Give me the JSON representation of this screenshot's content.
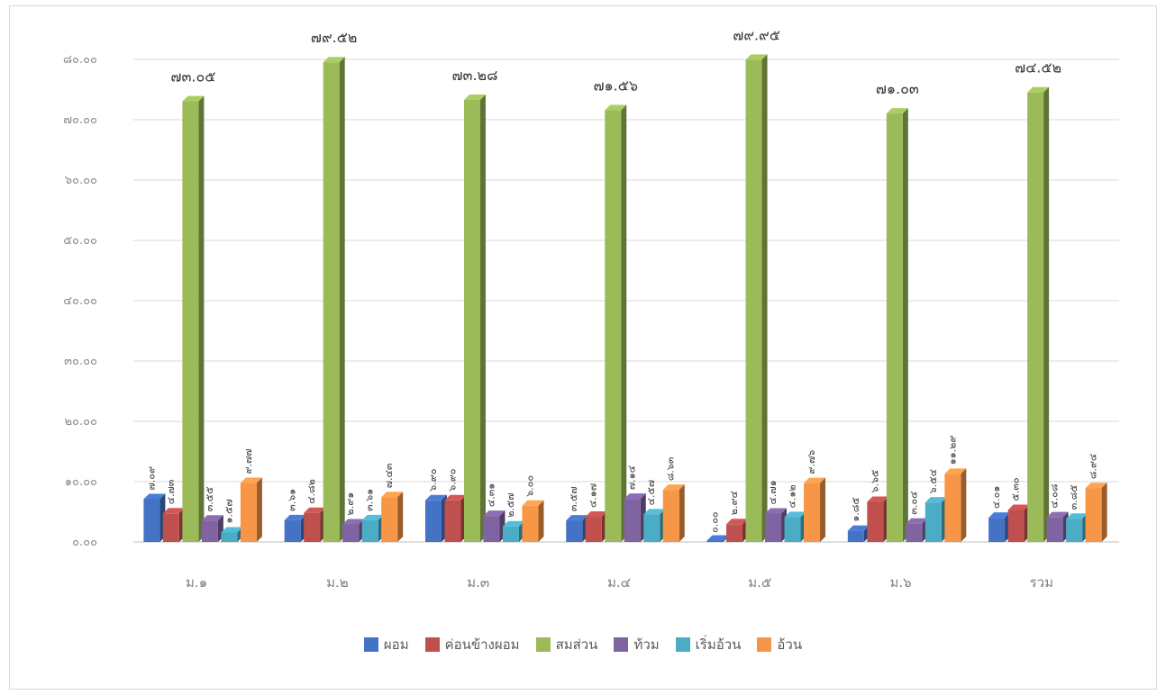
{
  "chart_data": {
    "type": "bar",
    "categories": [
      "ม.๑",
      "ม.๒",
      "ม.๓",
      "ม.๔",
      "ม.๕",
      "ม.๖",
      "รวม"
    ],
    "ylim": [
      0,
      80
    ],
    "yticks": [
      0,
      10,
      20,
      30,
      40,
      50,
      60,
      70,
      80
    ],
    "ytick_labels": [
      "๐.๐๐",
      "๑๐.๐๐",
      "๒๐.๐๐",
      "๓๐.๐๐",
      "๔๐.๐๐",
      "๕๐.๐๐",
      "๖๐.๐๐",
      "๗๐.๐๐",
      "๘๐.๐๐"
    ],
    "grid": true,
    "legend_position": "bottom",
    "series": [
      {
        "name": "ผอม",
        "color": "#4472C4",
        "values": [
          7.09,
          3.61,
          6.9,
          3.57,
          0.0,
          1.85,
          4.01
        ],
        "labels": [
          "๗.๐๙",
          "๓.๖๑",
          "๖.๙๐",
          "๓.๕๗",
          "๐.๐๐",
          "๑.๘๕",
          "๔.๐๑"
        ]
      },
      {
        "name": "ค่อนข้างผอม",
        "color": "#C0504D",
        "values": [
          4.73,
          4.82,
          6.9,
          4.17,
          2.94,
          6.65,
          5.3
        ],
        "labels": [
          "๔.๗๓",
          "๔.๘๒",
          "๖.๙๐",
          "๔.๑๗",
          "๒.๙๔",
          "๖.๖๕",
          "๕.๓๐"
        ]
      },
      {
        "name": "สมส่วน",
        "color": "#9BBB59",
        "values": [
          73.05,
          79.52,
          73.28,
          71.56,
          79.95,
          71.03,
          74.52
        ],
        "labels": [
          "๗๓.๐๕",
          "๗๙.๕๒",
          "๗๓.๒๘",
          "๗๑.๕๖",
          "๗๙.๙๕",
          "๗๑.๐๓",
          "๗๔.๕๒"
        ]
      },
      {
        "name": "ท้วม",
        "color": "#8064A2",
        "values": [
          3.55,
          2.91,
          4.31,
          7.14,
          4.71,
          3.04,
          4.08
        ],
        "labels": [
          "๓.๕๕",
          "๒.๙๑",
          "๔.๓๑",
          "๗.๑๔",
          "๔.๗๑",
          "๓.๐๔",
          "๔.๐๘"
        ]
      },
      {
        "name": "เริ่มอ้วน",
        "color": "#4BACC6",
        "values": [
          1.57,
          3.61,
          2.57,
          4.57,
          4.12,
          6.54,
          3.85
        ],
        "labels": [
          "๑.๕๗",
          "๓.๖๑",
          "๒.๕๗",
          "๔.๕๗",
          "๔.๑๒",
          "๖.๕๔",
          "๓.๘๕"
        ]
      },
      {
        "name": "อ้วน",
        "color": "#F79646",
        "values": [
          9.77,
          7.43,
          6.0,
          8.63,
          9.76,
          11.29,
          8.94
        ],
        "labels": [
          "๙.๗๗",
          "๗.๔๓",
          "๖.๐๐",
          "๘.๖๓",
          "๙.๗๖",
          "๑๑.๒๙",
          "๘.๙๔"
        ]
      }
    ]
  }
}
